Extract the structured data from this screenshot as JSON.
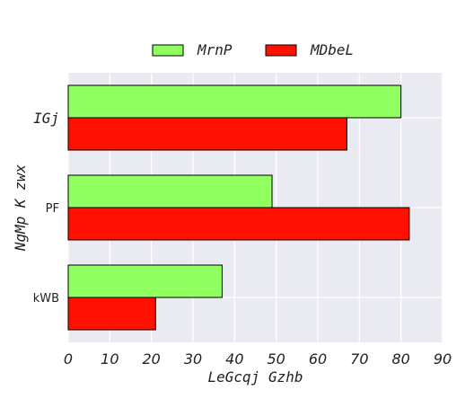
{
  "chart_data": {
    "type": "bar",
    "orientation": "horizontal",
    "categories": [
      "IGj",
      "PF",
      "kWB"
    ],
    "series": [
      {
        "name": "MrnP",
        "values": [
          80,
          49,
          37
        ],
        "color": "#90ff60"
      },
      {
        "name": "MDbeL",
        "values": [
          67,
          82,
          21
        ],
        "color": "#ff1000"
      }
    ],
    "xlabel": "LeGcqj Gzhb",
    "ylabel": "NgMp K zwx",
    "xlim": [
      0,
      90
    ],
    "xticks": [
      0,
      10,
      20,
      30,
      40,
      50,
      60,
      70,
      80,
      90
    ],
    "grid": true,
    "legend_position": "top-center",
    "background_color": "#eaeaf2"
  }
}
